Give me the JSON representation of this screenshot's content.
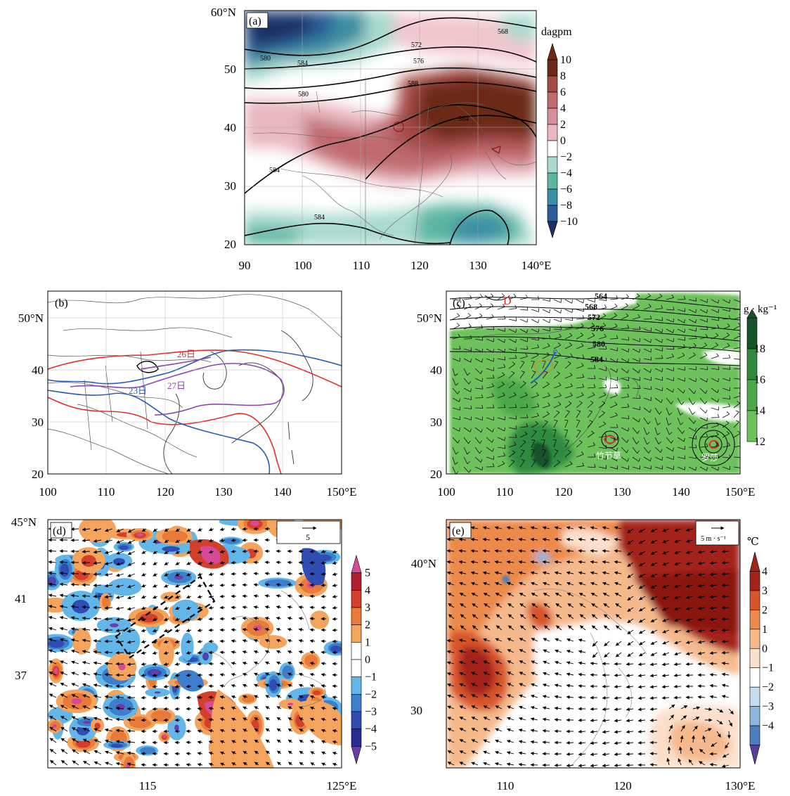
{
  "panels": {
    "a": {
      "label": "(a)",
      "lat_ticks": [
        "60°N",
        "50",
        "40",
        "30",
        "20"
      ],
      "lon_ticks": [
        "90",
        "100",
        "110",
        "120",
        "130",
        "140°E"
      ],
      "colorbar_unit": "dagpm",
      "colorbar_labels": [
        "10",
        "8",
        "6",
        "4",
        "2",
        "0",
        "−2",
        "−4",
        "−6",
        "−8",
        "−10"
      ],
      "contour_labels": [
        "568",
        "580",
        "584",
        "572",
        "576",
        "580",
        "588",
        "584",
        "584",
        "584"
      ]
    },
    "b": {
      "label": "(b)",
      "lat_ticks": [
        "50°N",
        "40",
        "30",
        "20"
      ],
      "lon_ticks": [
        "100",
        "110",
        "120",
        "130",
        "140",
        "150°E"
      ],
      "line_labels": [
        {
          "text": "26日",
          "color": "#e03030"
        },
        {
          "text": "23日",
          "color": "#2a5db0"
        },
        {
          "text": "27日",
          "color": "#8e44ad"
        }
      ]
    },
    "c": {
      "label": "(c)",
      "lat_ticks": [
        "50°N",
        "40",
        "30",
        "20"
      ],
      "lon_ticks": [
        "100",
        "110",
        "120",
        "130",
        "140",
        "150°E"
      ],
      "colorbar_unit": "g · kg⁻¹",
      "colorbar_labels": [
        "18",
        "16",
        "14",
        "12"
      ],
      "contour_labels": [
        "564",
        "568",
        "572",
        "576",
        "580",
        "584"
      ],
      "low_marker": "D",
      "typhoon_labels": [
        "竹节草",
        "罗莎"
      ]
    },
    "d": {
      "label": "(d)",
      "lat_ticks": [
        "45°N",
        "41",
        "37"
      ],
      "lon_ticks": [
        "115",
        "125°E"
      ],
      "ref_vector_label": "5",
      "colorbar_labels": [
        "5",
        "4",
        "3",
        "2",
        "1",
        "0",
        "−1",
        "−2",
        "−3",
        "−4",
        "−5"
      ]
    },
    "e": {
      "label": "(e)",
      "lat_ticks": [
        "40°N",
        "30"
      ],
      "lon_ticks": [
        "110",
        "120",
        "130°E"
      ],
      "ref_vector_label": "5 m · s⁻¹",
      "colorbar_unit": "℃",
      "colorbar_labels": [
        "4",
        "3",
        "2",
        "1",
        "0",
        "−1",
        "−2",
        "−3",
        "−4"
      ]
    }
  },
  "colors": {
    "anomaly_pos": [
      "#f6dce0",
      "#e8b7bf",
      "#d48f98",
      "#c06a70",
      "#a44a45",
      "#6b2a17"
    ],
    "anomaly_neg": [
      "#dff0ec",
      "#a9dacd",
      "#5bb6a2",
      "#3a8fa3",
      "#2c5d96",
      "#1d2f63"
    ],
    "humid": [
      "#6ec25c",
      "#4da84a",
      "#2f8a3f",
      "#16522a"
    ],
    "d_pos": [
      "#f4a45c",
      "#e87a3a",
      "#d2402c",
      "#b01f2e",
      "#d84a98"
    ],
    "d_neg": [
      "#63b6e8",
      "#3d7fca",
      "#2f4db3",
      "#2a2b8f",
      "#6b3ca8"
    ],
    "e_pos": [
      "#fbe0cc",
      "#f5b98c",
      "#ec8a4c",
      "#d8552c",
      "#a5221a"
    ],
    "e_neg": [
      "#c6dcef",
      "#8fb6dc",
      "#4b7fbf",
      "#5a3f9a"
    ]
  }
}
